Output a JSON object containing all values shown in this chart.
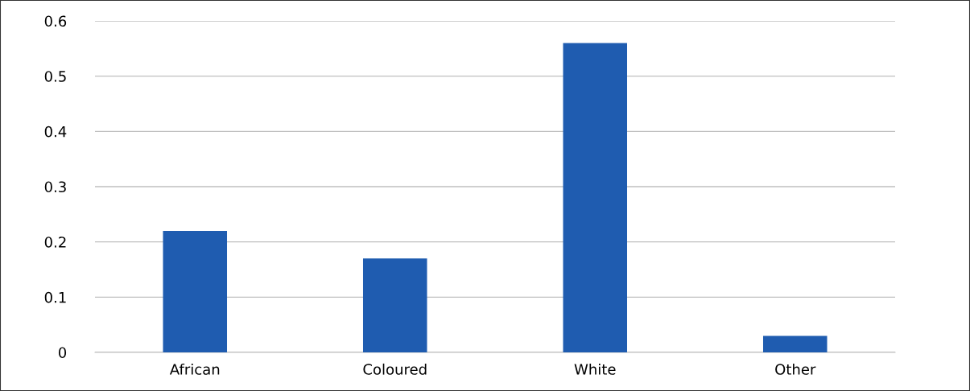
{
  "chart_data": {
    "type": "bar",
    "categories": [
      "African",
      "Coloured",
      "White",
      "Other"
    ],
    "values": [
      0.22,
      0.17,
      0.56,
      0.03
    ],
    "color": "#1f5cb0",
    "ylim": [
      0,
      0.6
    ],
    "yticks": [
      0,
      0.1,
      0.2,
      0.3,
      0.4,
      0.5,
      0.6
    ],
    "grid": "y"
  }
}
